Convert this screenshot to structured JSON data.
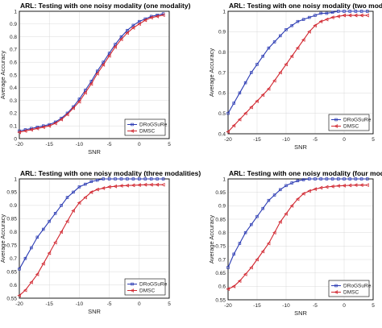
{
  "colors": {
    "drgsure": "#2b3bb3",
    "dmsc": "#d1262f"
  },
  "legend_labels": [
    "DRᴏGSuRe",
    "DMSC"
  ],
  "chart_data": [
    {
      "type": "line",
      "title": "ARL: Testing with one noisy modality (one modality)",
      "xlabel": "SNR",
      "ylabel": "Average Accuracy",
      "xlim": [
        -20,
        5
      ],
      "ylim": [
        0,
        1
      ],
      "x_ticks": [
        -20,
        -15,
        -10,
        -5,
        0,
        5
      ],
      "y_ticks": [
        0,
        0.1,
        0.2,
        0.3,
        0.4,
        0.5,
        0.6,
        0.7,
        0.8,
        0.9,
        1
      ],
      "grid": true,
      "legend_position": "bottom-right",
      "x": [
        -20,
        -19,
        -18,
        -17,
        -16,
        -15,
        -14,
        -13,
        -12,
        -11,
        -10,
        -9,
        -8,
        -7,
        -6,
        -5,
        -4,
        -3,
        -2,
        -1,
        0,
        1,
        2,
        3,
        4
      ],
      "series": [
        {
          "name": "DRᴏGSuRe",
          "values": [
            0.06,
            0.07,
            0.08,
            0.09,
            0.1,
            0.11,
            0.13,
            0.16,
            0.2,
            0.25,
            0.31,
            0.38,
            0.45,
            0.53,
            0.6,
            0.67,
            0.74,
            0.8,
            0.85,
            0.89,
            0.92,
            0.94,
            0.96,
            0.97,
            0.98
          ]
        },
        {
          "name": "DMSC",
          "values": [
            0.05,
            0.06,
            0.07,
            0.08,
            0.09,
            0.1,
            0.12,
            0.15,
            0.19,
            0.24,
            0.29,
            0.36,
            0.43,
            0.51,
            0.58,
            0.65,
            0.72,
            0.78,
            0.83,
            0.87,
            0.9,
            0.93,
            0.95,
            0.96,
            0.97
          ]
        }
      ]
    },
    {
      "type": "line",
      "title": "ARL: Testing with one noisy modality (two modalities)",
      "xlabel": "SNR",
      "ylabel": "Average Accuracy",
      "xlim": [
        -20,
        5
      ],
      "ylim": [
        0.4,
        1
      ],
      "x_ticks": [
        -20,
        -15,
        -10,
        -5,
        0,
        5
      ],
      "y_ticks": [
        0.4,
        0.5,
        0.6,
        0.7,
        0.8,
        0.9,
        1
      ],
      "grid": true,
      "legend_position": "bottom-right",
      "x": [
        -20,
        -19,
        -18,
        -17,
        -16,
        -15,
        -14,
        -13,
        -12,
        -11,
        -10,
        -9,
        -8,
        -7,
        -6,
        -5,
        -4,
        -3,
        -2,
        -1,
        0,
        1,
        2,
        3,
        4
      ],
      "series": [
        {
          "name": "DRᴏGSuRe",
          "values": [
            0.5,
            0.55,
            0.6,
            0.65,
            0.7,
            0.74,
            0.78,
            0.82,
            0.85,
            0.88,
            0.91,
            0.93,
            0.95,
            0.96,
            0.97,
            0.98,
            0.99,
            0.99,
            0.995,
            1.0,
            1.0,
            1.0,
            1.0,
            1.0,
            1.0
          ]
        },
        {
          "name": "DMSC",
          "values": [
            0.41,
            0.44,
            0.47,
            0.5,
            0.53,
            0.56,
            0.59,
            0.62,
            0.66,
            0.7,
            0.74,
            0.78,
            0.82,
            0.86,
            0.9,
            0.93,
            0.95,
            0.96,
            0.97,
            0.975,
            0.98,
            0.98,
            0.98,
            0.98,
            0.98
          ]
        }
      ]
    },
    {
      "type": "line",
      "title": "ARL: Testing with one noisy modality (three modalities)",
      "xlabel": "SNR",
      "ylabel": "Average Accuracy",
      "xlim": [
        -20,
        5
      ],
      "ylim": [
        0.55,
        1
      ],
      "x_ticks": [
        -20,
        -15,
        -10,
        -5,
        0,
        5
      ],
      "y_ticks": [
        0.55,
        0.6,
        0.65,
        0.7,
        0.75,
        0.8,
        0.85,
        0.9,
        0.95,
        1
      ],
      "grid": true,
      "legend_position": "bottom-right",
      "x": [
        -20,
        -19,
        -18,
        -17,
        -16,
        -15,
        -14,
        -13,
        -12,
        -11,
        -10,
        -9,
        -8,
        -7,
        -6,
        -5,
        -4,
        -3,
        -2,
        -1,
        0,
        1,
        2,
        3,
        4
      ],
      "series": [
        {
          "name": "DRᴏGSuRe",
          "values": [
            0.66,
            0.7,
            0.74,
            0.78,
            0.81,
            0.84,
            0.87,
            0.9,
            0.93,
            0.95,
            0.97,
            0.98,
            0.99,
            0.995,
            1.0,
            1.0,
            1.0,
            1.0,
            1.0,
            1.0,
            1.0,
            1.0,
            1.0,
            1.0,
            1.0
          ]
        },
        {
          "name": "DMSC",
          "values": [
            0.56,
            0.58,
            0.61,
            0.64,
            0.68,
            0.72,
            0.76,
            0.8,
            0.84,
            0.88,
            0.91,
            0.93,
            0.95,
            0.96,
            0.965,
            0.97,
            0.972,
            0.974,
            0.975,
            0.976,
            0.977,
            0.978,
            0.978,
            0.978,
            0.978
          ]
        }
      ]
    },
    {
      "type": "line",
      "title": "ARL: Testing with one noisy modality (four modalities)",
      "xlabel": "SNR",
      "ylabel": "Average Accuracy",
      "xlim": [
        -20,
        5
      ],
      "ylim": [
        0.55,
        1
      ],
      "x_ticks": [
        -20,
        -15,
        -10,
        -5,
        0,
        5
      ],
      "y_ticks": [
        0.55,
        0.6,
        0.65,
        0.7,
        0.75,
        0.8,
        0.85,
        0.9,
        0.95,
        1
      ],
      "grid": true,
      "legend_position": "bottom-right",
      "x": [
        -20,
        -19,
        -18,
        -17,
        -16,
        -15,
        -14,
        -13,
        -12,
        -11,
        -10,
        -9,
        -8,
        -7,
        -6,
        -5,
        -4,
        -3,
        -2,
        -1,
        0,
        1,
        2,
        3,
        4
      ],
      "series": [
        {
          "name": "DRᴏGSuRe",
          "values": [
            0.67,
            0.72,
            0.76,
            0.8,
            0.83,
            0.86,
            0.89,
            0.92,
            0.94,
            0.96,
            0.975,
            0.985,
            0.993,
            0.997,
            1.0,
            1.0,
            1.0,
            1.0,
            1.0,
            1.0,
            1.0,
            1.0,
            1.0,
            1.0,
            1.0
          ]
        },
        {
          "name": "DMSC",
          "values": [
            0.59,
            0.6,
            0.62,
            0.645,
            0.67,
            0.7,
            0.73,
            0.76,
            0.8,
            0.84,
            0.87,
            0.9,
            0.925,
            0.945,
            0.955,
            0.962,
            0.967,
            0.97,
            0.972,
            0.974,
            0.975,
            0.976,
            0.977,
            0.977,
            0.977
          ]
        }
      ]
    }
  ]
}
